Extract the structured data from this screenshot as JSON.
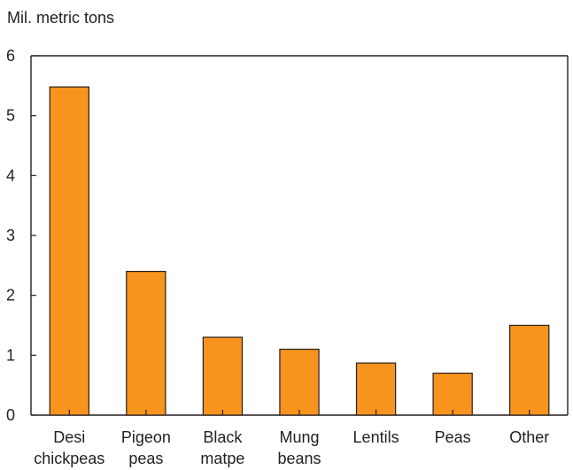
{
  "chart_data": {
    "type": "bar",
    "title": "",
    "ylabel": "Mil. metric tons",
    "xlabel": "",
    "categories": [
      [
        "Desi",
        "chickpeas"
      ],
      [
        "Pigeon",
        "peas"
      ],
      [
        "Black",
        "matpe"
      ],
      [
        "Mung",
        "beans"
      ],
      [
        "Lentils"
      ],
      [
        "Peas"
      ],
      [
        "Other"
      ]
    ],
    "values": [
      5.48,
      2.4,
      1.3,
      1.1,
      0.87,
      0.7,
      1.5
    ],
    "ylim": [
      0,
      6
    ],
    "yticks": [
      "0",
      "1",
      "2",
      "3",
      "4",
      "5",
      "6"
    ],
    "grid": false,
    "colors": {
      "bar_fill": "#f7941d",
      "bar_stroke": "#231f20",
      "axis": "#231f20"
    }
  }
}
